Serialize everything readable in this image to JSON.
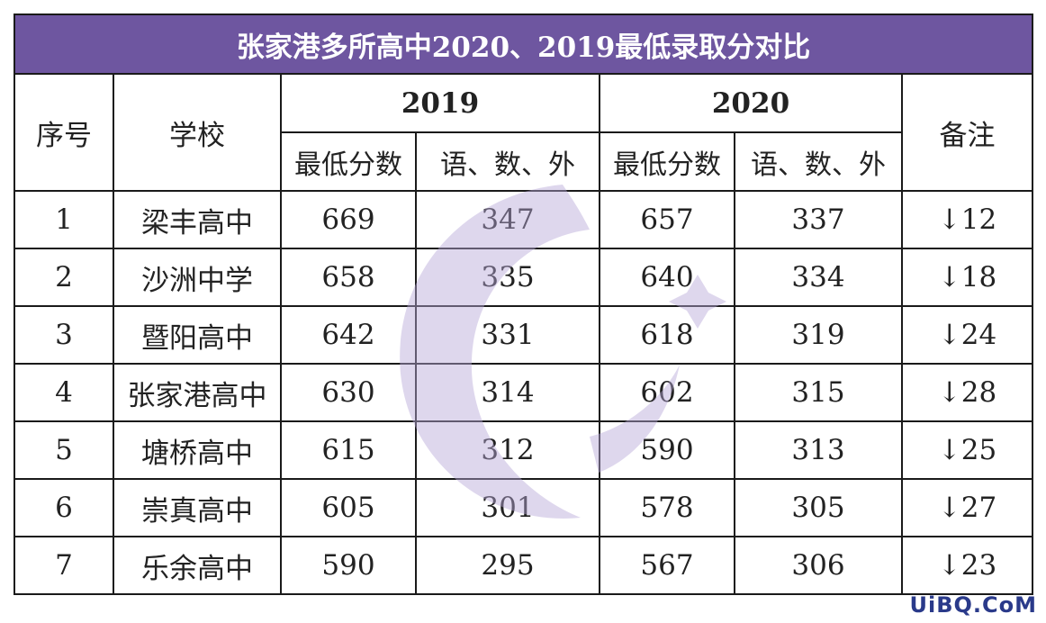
{
  "title": "张家港多所高中2020、2019最低录取分对比",
  "headers": {
    "index": "序号",
    "school": "学校",
    "year_2019": "2019",
    "year_2020": "2020",
    "min_score": "最低分数",
    "main_subjects": "语、数、外",
    "note": "备注"
  },
  "rows": [
    {
      "no": "1",
      "school": "梁丰高中",
      "min2019": "669",
      "sub2019": "347",
      "min2020": "657",
      "sub2020": "337",
      "note": "↓12"
    },
    {
      "no": "2",
      "school": "沙洲中学",
      "min2019": "658",
      "sub2019": "335",
      "min2020": "640",
      "sub2020": "334",
      "note": "↓18"
    },
    {
      "no": "3",
      "school": "暨阳高中",
      "min2019": "642",
      "sub2019": "331",
      "min2020": "618",
      "sub2020": "319",
      "note": "↓24"
    },
    {
      "no": "4",
      "school": "张家港高中",
      "min2019": "630",
      "sub2019": "314",
      "min2020": "602",
      "sub2020": "315",
      "note": "↓28"
    },
    {
      "no": "5",
      "school": "塘桥高中",
      "min2019": "615",
      "sub2019": "312",
      "min2020": "590",
      "sub2020": "313",
      "note": "↓25"
    },
    {
      "no": "6",
      "school": "崇真高中",
      "min2019": "605",
      "sub2019": "301",
      "min2020": "578",
      "sub2020": "305",
      "note": "↓27"
    },
    {
      "no": "7",
      "school": "乐余高中",
      "min2019": "590",
      "sub2019": "295",
      "min2020": "567",
      "sub2020": "306",
      "note": "↓23"
    }
  ],
  "brand": "UiBQ.CoM",
  "colors": {
    "title_bg": "#6e56a0",
    "title_text": "#ffffff",
    "watermark": "#b8a8d8"
  }
}
